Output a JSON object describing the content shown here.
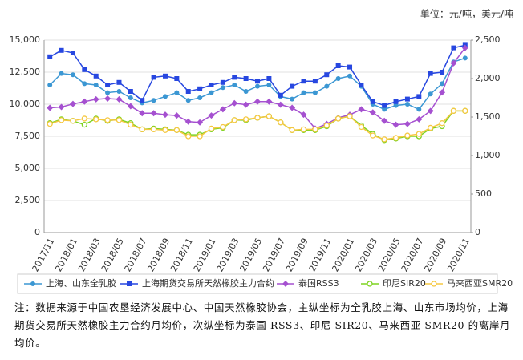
{
  "chart_data": {
    "type": "line",
    "unit": "单位：元/吨，美元/吨",
    "categories": [
      "2017/11",
      null,
      "2018/01",
      null,
      "2018/03",
      null,
      "2018/05",
      null,
      "2018/07",
      null,
      "2018/09",
      null,
      "2018/11",
      null,
      "2019/01",
      null,
      "2019/03",
      null,
      "2019/05",
      null,
      "2019/07",
      null,
      "2019/09",
      null,
      "2019/11",
      null,
      "2020/01",
      null,
      "2020/03",
      null,
      "2020/05",
      null,
      "2020/07",
      null,
      "2020/09",
      null,
      "2020/11"
    ],
    "ylim": [
      0,
      15000
    ],
    "yticks": [
      0,
      {
        "value": 2500,
        "label": "2,500"
      },
      {
        "value": 5000,
        "label": "5,000"
      },
      {
        "value": 7500,
        "label": "7,500"
      },
      {
        "value": 10000,
        "label": "10,000"
      },
      {
        "value": 12500,
        "label": "12,500"
      },
      {
        "value": 15000,
        "label": "15,000"
      }
    ],
    "y2lim": [
      0,
      2500
    ],
    "y2ticks": [
      0,
      500,
      {
        "value": 1000,
        "label": "1,000"
      },
      {
        "value": 1500,
        "label": "1,500"
      },
      {
        "value": 2000,
        "label": "2,000"
      },
      {
        "value": 2500,
        "label": "2,500"
      }
    ],
    "grid": true,
    "legend": "bottom",
    "series": [
      {
        "name": "上海、山东全乳胶",
        "color": "#3b97d3",
        "marker": "circle",
        "values": [
          11500,
          12400,
          12300,
          11600,
          11500,
          10900,
          11000,
          10500,
          10100,
          10300,
          10600,
          10900,
          10300,
          10500,
          10900,
          11300,
          11500,
          11000,
          11400,
          11500,
          10600,
          10400,
          10900,
          10900,
          11400,
          12000,
          12200,
          11400,
          10000,
          9600,
          9900,
          10000,
          9600,
          10800,
          11600,
          13300,
          13600
        ]
      },
      {
        "name": "上海期货交易所天然橡胶主力合约",
        "color": "#2747e0",
        "marker": "square",
        "values": [
          13700,
          14200,
          14000,
          12700,
          12200,
          11500,
          11700,
          11000,
          10300,
          12100,
          12200,
          12000,
          11000,
          11200,
          11500,
          11700,
          12100,
          12000,
          11800,
          12000,
          10700,
          11400,
          11800,
          11800,
          12300,
          13000,
          12900,
          11500,
          10200,
          9900,
          10200,
          10400,
          10600,
          12400,
          12500,
          14400,
          14600
        ]
      },
      {
        "name": "泰国RSS3",
        "color": "#a550d0",
        "marker": "diamond",
        "axis": "y2",
        "values": [
          1620,
          1630,
          1670,
          1700,
          1730,
          1740,
          1730,
          1640,
          1550,
          1550,
          1530,
          1520,
          1440,
          1430,
          1520,
          1600,
          1680,
          1660,
          1700,
          1700,
          1660,
          1620,
          1530,
          1350,
          1410,
          1490,
          1530,
          1600,
          1560,
          1450,
          1400,
          1410,
          1470,
          1580,
          1820,
          2200,
          2400
        ]
      },
      {
        "name": "印尼SIR20",
        "color": "#7ed321",
        "marker": "hollow",
        "axis": "y2",
        "values": [
          1420,
          1470,
          1450,
          1400,
          1480,
          1450,
          1470,
          1420,
          1340,
          1350,
          1340,
          1330,
          1270,
          1270,
          1340,
          1360,
          1460,
          1460,
          1490,
          1510,
          1430,
          1330,
          1330,
          1330,
          1380,
          1480,
          1510,
          1390,
          1280,
          1200,
          1220,
          1250,
          1250,
          1350,
          1380,
          1580,
          1580
        ]
      },
      {
        "name": "马来西亚SMR20",
        "color": "#f5c842",
        "marker": "hollow",
        "axis": "y2",
        "values": [
          1410,
          1460,
          1450,
          1480,
          1470,
          1460,
          1460,
          1400,
          1340,
          1340,
          1330,
          1330,
          1250,
          1250,
          1350,
          1370,
          1460,
          1470,
          1490,
          1510,
          1430,
          1330,
          1340,
          1340,
          1390,
          1480,
          1510,
          1370,
          1260,
          1210,
          1230,
          1260,
          1280,
          1360,
          1420,
          1580,
          1580
        ]
      }
    ],
    "note": "注：数据来源于中国农垦经济发展中心、中国天然橡胶协会，主纵坐标为全乳胶上海、山东市场均价，上海期货交易所天然橡胶主力合约月均价，次纵坐标为泰国 RSS3、印尼 SIR20、马来西亚 SMR20 的离岸月均价。"
  }
}
